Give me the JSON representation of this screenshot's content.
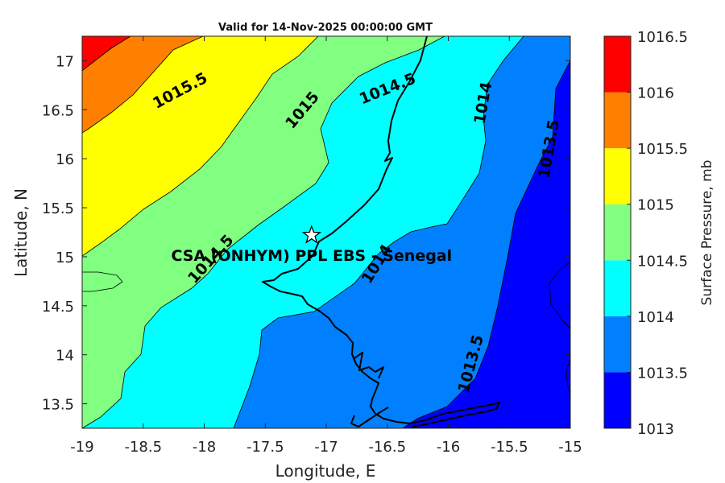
{
  "chart_data": {
    "type": "contour",
    "title": "Valid for 14-Nov-2025 00:00:00 GMT",
    "xlabel": "Longitude, E",
    "ylabel": "Latitude, N",
    "xlim": [
      -19,
      -15
    ],
    "ylim": [
      13.25,
      17.25
    ],
    "x_ticks": [
      -19,
      -18.5,
      -18,
      -17.5,
      -17,
      -16.5,
      -16,
      -15.5,
      -15
    ],
    "x_tick_labels": [
      "-19",
      "-18.5",
      "-18",
      "-17.5",
      "-17",
      "-16.5",
      "-16",
      "-15.5",
      "-15"
    ],
    "y_ticks": [
      13.5,
      14,
      14.5,
      15,
      15.5,
      16,
      16.5,
      17
    ],
    "y_tick_labels": [
      "13.5",
      "14",
      "14.5",
      "15",
      "15.5",
      "16",
      "16.5",
      "17"
    ],
    "colorbar": {
      "title": "Surface Pressure, mb",
      "levels": [
        1013,
        1013.5,
        1014,
        1014.5,
        1015,
        1015.5,
        1016,
        1016.5
      ],
      "level_labels": [
        "1013",
        "1013.5",
        "1014",
        "1014.5",
        "1015",
        "1015.5",
        "1016",
        "1016.5"
      ],
      "colors": [
        "#0000ff",
        "#0080ff",
        "#00ffff",
        "#80ff80",
        "#ffff00",
        "#ff8000",
        "#ff0000",
        "#800000"
      ]
    },
    "contour_labels": [
      {
        "text": "1015.5",
        "lon": -18.2,
        "lat": 16.7,
        "angle": -28
      },
      {
        "text": "1015",
        "lon": -17.2,
        "lat": 16.5,
        "angle": -50
      },
      {
        "text": "1014.5",
        "lon": -16.5,
        "lat": 16.72,
        "angle": -22
      },
      {
        "text": "1014",
        "lon": -15.72,
        "lat": 16.57,
        "angle": -80
      },
      {
        "text": "1013.5",
        "lon": -15.18,
        "lat": 16.1,
        "angle": -80
      },
      {
        "text": "1014.5",
        "lon": -17.95,
        "lat": 14.98,
        "angle": -48
      },
      {
        "text": "1014",
        "lon": -16.59,
        "lat": 14.93,
        "angle": -58
      },
      {
        "text": "1013.5",
        "lon": -15.82,
        "lat": 13.91,
        "angle": -75
      }
    ],
    "station": {
      "name": "CSA (ONHYM) PPL EBS - Senegal",
      "lon": -17.12,
      "lat": 15.22
    }
  }
}
